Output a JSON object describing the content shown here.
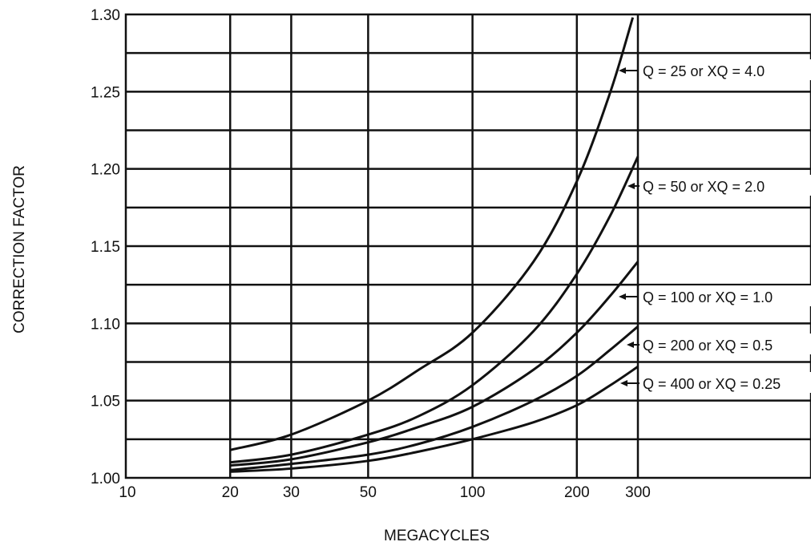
{
  "chart_data": {
    "type": "line",
    "xlabel": "MEGACYCLES",
    "ylabel": "CORRECTION FACTOR",
    "x_scale": "log",
    "xlim": [
      10,
      300
    ],
    "ylim": [
      1.0,
      1.3
    ],
    "grid": true,
    "x_ticks": [
      "10",
      "20",
      "30",
      "50",
      "100",
      "200",
      "300"
    ],
    "y_ticks": [
      "1.00",
      "1.05",
      "1.10",
      "1.15",
      "1.20",
      "1.25",
      "1.30"
    ],
    "series": [
      {
        "name": "Q = 25 or XQ = 4.0",
        "x": [
          20,
          30,
          50,
          70,
          100,
          150,
          200,
          250,
          290
        ],
        "y": [
          1.018,
          1.028,
          1.05,
          1.07,
          1.094,
          1.14,
          1.192,
          1.25,
          1.298
        ]
      },
      {
        "name": "Q = 50 or XQ = 2.0",
        "x": [
          20,
          30,
          50,
          70,
          100,
          150,
          200,
          250,
          300
        ],
        "y": [
          1.01,
          1.015,
          1.028,
          1.04,
          1.06,
          1.095,
          1.132,
          1.17,
          1.208
        ]
      },
      {
        "name": "Q = 100 or XQ = 1.0",
        "x": [
          20,
          30,
          50,
          70,
          100,
          150,
          200,
          250,
          300
        ],
        "y": [
          1.008,
          1.012,
          1.023,
          1.033,
          1.046,
          1.07,
          1.094,
          1.118,
          1.14
        ]
      },
      {
        "name": "Q = 200 or XQ = 0.5",
        "x": [
          20,
          30,
          50,
          70,
          100,
          150,
          200,
          250,
          300
        ],
        "y": [
          1.005,
          1.009,
          1.015,
          1.022,
          1.033,
          1.05,
          1.066,
          1.083,
          1.098
        ]
      },
      {
        "name": "Q = 400 or XQ = 0.25",
        "x": [
          20,
          30,
          50,
          70,
          100,
          150,
          200,
          250,
          300
        ],
        "y": [
          1.004,
          1.006,
          1.011,
          1.017,
          1.025,
          1.036,
          1.047,
          1.06,
          1.072
        ]
      }
    ]
  }
}
